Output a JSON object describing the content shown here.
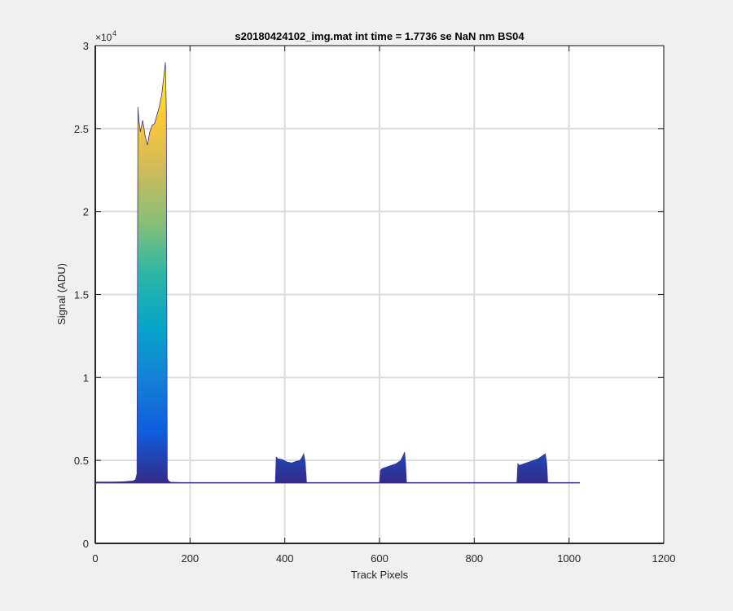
{
  "chart_data": {
    "type": "area",
    "title": "s20180424102_img.mat int time = 1.7736 se  NaN nm BS04",
    "xlabel": "Track Pixels",
    "ylabel": "Signal (ADU)",
    "xlim": [
      0,
      1200
    ],
    "ylim": [
      0,
      30000
    ],
    "x_ticks": [
      0,
      200,
      400,
      600,
      800,
      1000,
      1200
    ],
    "x_tick_labels": [
      "0",
      "200",
      "400",
      "600",
      "800",
      "1000",
      "1200"
    ],
    "y_ticks": [
      0,
      5000,
      10000,
      15000,
      20000,
      25000,
      30000
    ],
    "y_tick_labels": [
      "0",
      "0.5",
      "1",
      "1.5",
      "2",
      "2.5",
      "3"
    ],
    "y_exponent_base": "×10",
    "y_exponent_power": "4",
    "grid": true,
    "colormap": "parula",
    "color_limits": [
      3600,
      29000
    ],
    "baseline": 3650,
    "x_extent": [
      0,
      1023
    ],
    "series": [
      {
        "x": [
          0,
          20,
          40,
          60,
          80,
          85,
          88,
          90,
          92,
          95,
          100,
          105,
          110,
          115,
          120,
          125,
          130,
          135,
          140,
          145,
          148,
          150,
          152,
          155,
          160,
          180,
          200,
          300,
          380,
          382,
          385,
          395,
          405,
          415,
          425,
          432,
          437,
          440,
          443,
          446,
          500,
          600,
          602,
          605,
          615,
          625,
          635,
          645,
          650,
          653,
          655,
          657,
          700,
          800,
          890,
          892,
          895,
          905,
          915,
          925,
          935,
          945,
          950,
          953,
          955,
          1000,
          1023
        ],
        "y": [
          3700,
          3700,
          3700,
          3720,
          3760,
          3850,
          4200,
          26300,
          25500,
          24800,
          25500,
          24600,
          24000,
          24800,
          25200,
          25300,
          25800,
          26300,
          27000,
          28200,
          29000,
          26000,
          3900,
          3750,
          3680,
          3660,
          3650,
          3650,
          3650,
          5200,
          5100,
          5050,
          4900,
          4850,
          4950,
          5000,
          5200,
          5400,
          4900,
          3650,
          3650,
          3650,
          4400,
          4500,
          4600,
          4700,
          4800,
          5000,
          5300,
          5500,
          4800,
          3650,
          3650,
          3650,
          3650,
          4800,
          4700,
          4800,
          4900,
          5000,
          5100,
          5300,
          5400,
          4800,
          3650,
          3650,
          3650
        ]
      }
    ]
  }
}
